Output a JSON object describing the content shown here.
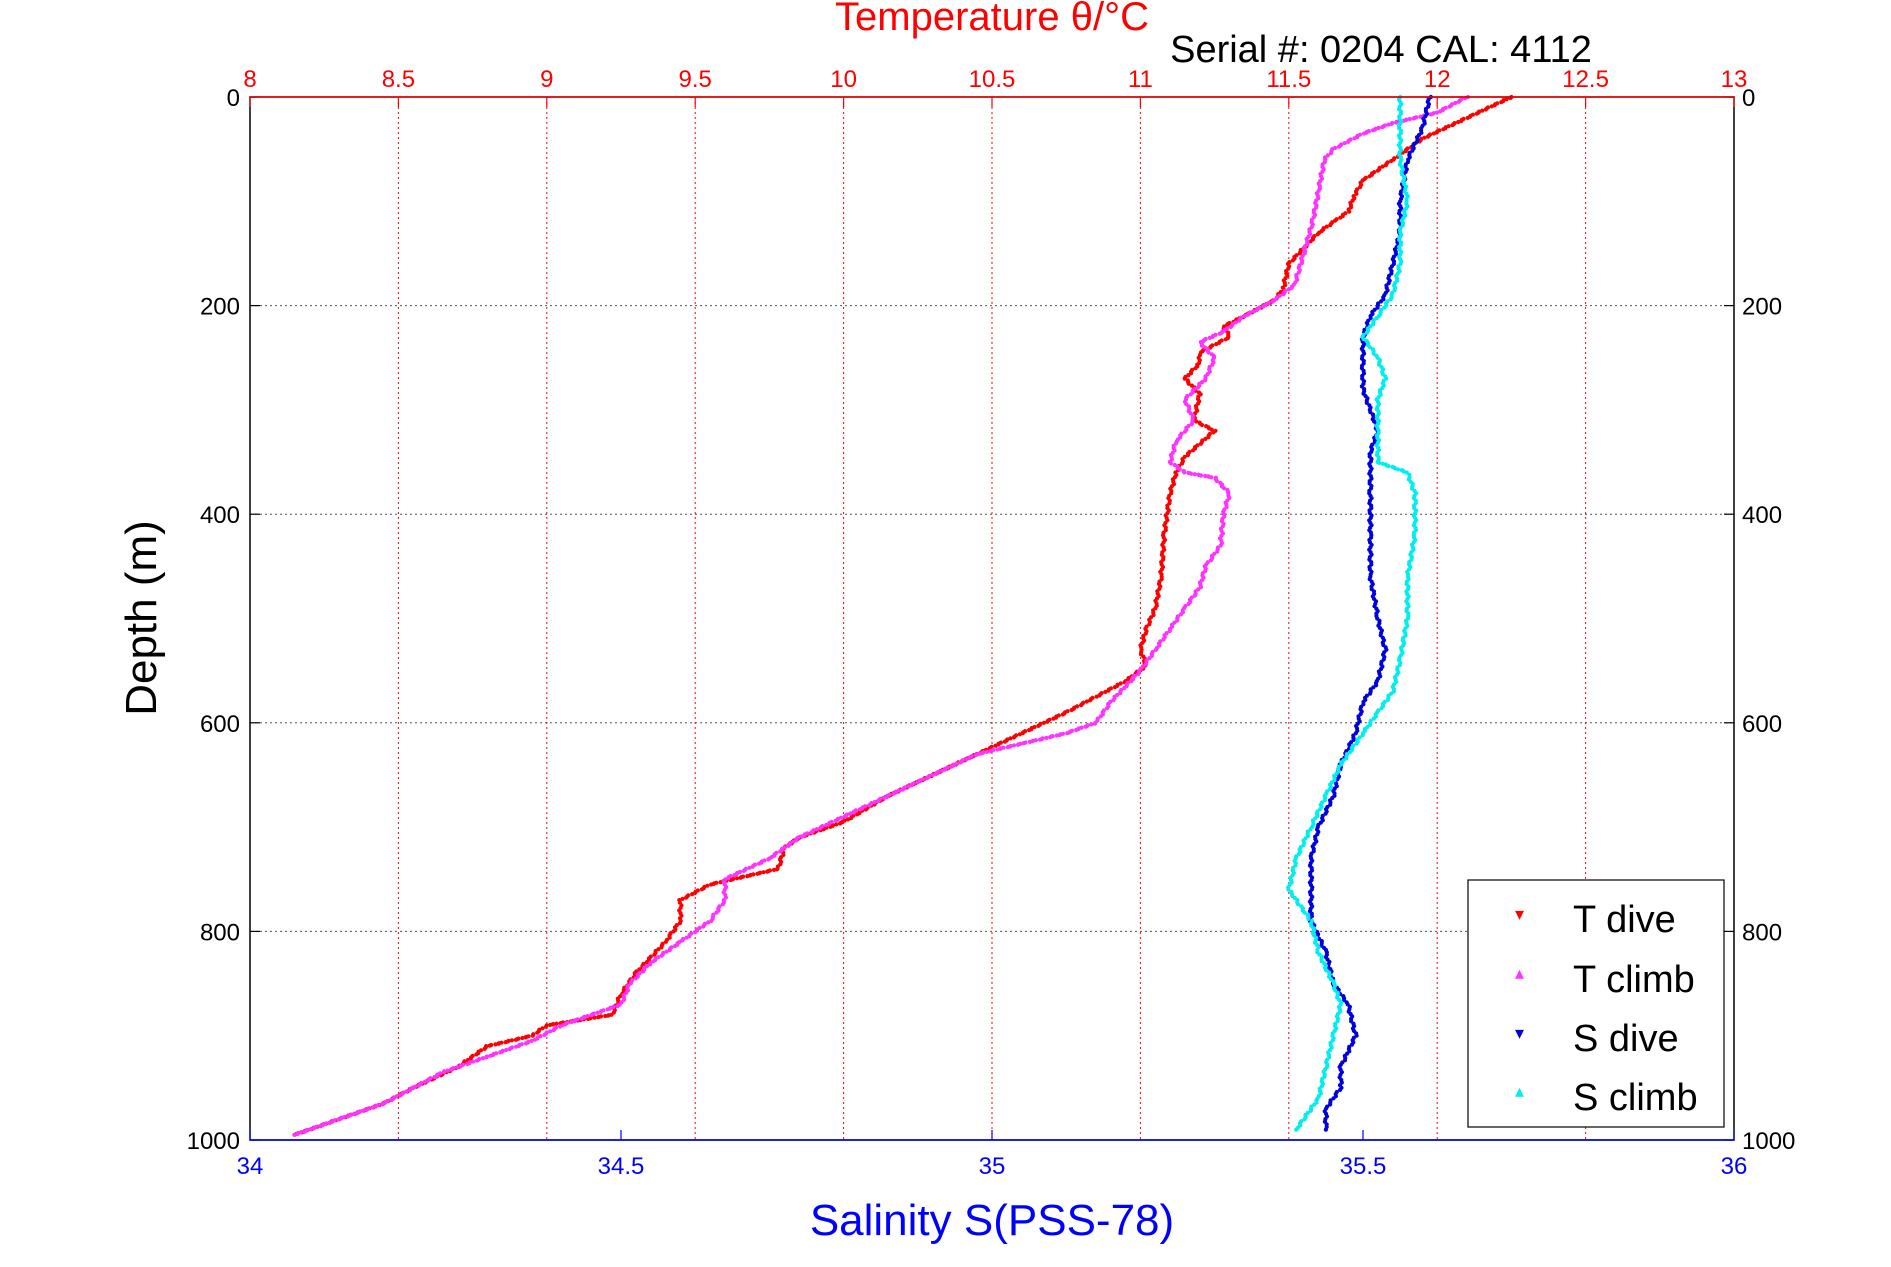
{
  "chart_data": {
    "type": "scatter",
    "title": "Temperature θ/°C",
    "subtitle": "Serial #: 0204  CAL: 4112",
    "ylabel": "Depth (m)",
    "xlabel_bottom": "Salinity S(PSS-78)",
    "xlabel_top": "Temperature θ/°C",
    "y_axis": {
      "min": 0,
      "max": 1000,
      "reversed": true,
      "ticks": [
        0,
        200,
        400,
        600,
        800,
        1000
      ]
    },
    "x_top": {
      "min": 8,
      "max": 13,
      "ticks": [
        8,
        8.5,
        9,
        9.5,
        10,
        10.5,
        11,
        11.5,
        12,
        12.5,
        13
      ]
    },
    "x_bottom": {
      "min": 34,
      "max": 36,
      "ticks": [
        34,
        34.5,
        35,
        35.5,
        36
      ]
    },
    "grid": true,
    "legend_position": "bottom-right",
    "colors": {
      "t_dive": "#ff0000",
      "t_climb": "#ff33ff",
      "s_dive": "#0000dd",
      "s_climb": "#00eeee",
      "top_axis": "#ff0000",
      "bottom_axis": "#0000ff"
    },
    "series": [
      {
        "name": "T dive",
        "axis": "top",
        "color": "#ff0000",
        "marker": "▾",
        "points": [
          [
            12.25,
            0
          ],
          [
            12.1,
            20
          ],
          [
            11.95,
            40
          ],
          [
            11.85,
            60
          ],
          [
            11.75,
            80
          ],
          [
            11.72,
            95
          ],
          [
            11.7,
            110
          ],
          [
            11.65,
            120
          ],
          [
            11.6,
            130
          ],
          [
            11.55,
            145
          ],
          [
            11.5,
            160
          ],
          [
            11.48,
            185
          ],
          [
            11.45,
            195
          ],
          [
            11.35,
            210
          ],
          [
            11.28,
            220
          ],
          [
            11.3,
            230
          ],
          [
            11.2,
            245
          ],
          [
            11.2,
            255
          ],
          [
            11.15,
            270
          ],
          [
            11.2,
            285
          ],
          [
            11.18,
            310
          ],
          [
            11.25,
            320
          ],
          [
            11.15,
            345
          ],
          [
            11.12,
            360
          ],
          [
            11.1,
            380
          ],
          [
            11.08,
            420
          ],
          [
            11.07,
            460
          ],
          [
            11.05,
            490
          ],
          [
            11.02,
            510
          ],
          [
            11.0,
            530
          ],
          [
            11.02,
            545
          ],
          [
            10.95,
            560
          ],
          [
            10.85,
            575
          ],
          [
            10.75,
            590
          ],
          [
            10.6,
            610
          ],
          [
            10.45,
            630
          ],
          [
            10.3,
            650
          ],
          [
            10.15,
            670
          ],
          [
            10.0,
            695
          ],
          [
            9.85,
            710
          ],
          [
            9.8,
            720
          ],
          [
            9.78,
            740
          ],
          [
            9.55,
            755
          ],
          [
            9.45,
            770
          ],
          [
            9.45,
            790
          ],
          [
            9.4,
            810
          ],
          [
            9.3,
            840
          ],
          [
            9.25,
            860
          ],
          [
            9.22,
            880
          ],
          [
            9.0,
            890
          ],
          [
            8.95,
            900
          ],
          [
            8.8,
            910
          ],
          [
            8.7,
            930
          ],
          [
            8.55,
            950
          ],
          [
            8.45,
            965
          ],
          [
            8.35,
            975
          ],
          [
            8.25,
            985
          ],
          [
            8.15,
            995
          ]
        ]
      },
      {
        "name": "T climb",
        "axis": "top",
        "color": "#ff33ff",
        "marker": "▴",
        "points": [
          [
            12.1,
            0
          ],
          [
            12.0,
            15
          ],
          [
            11.85,
            25
          ],
          [
            11.75,
            35
          ],
          [
            11.65,
            50
          ],
          [
            11.62,
            60
          ],
          [
            11.6,
            90
          ],
          [
            11.58,
            120
          ],
          [
            11.55,
            150
          ],
          [
            11.52,
            180
          ],
          [
            11.45,
            195
          ],
          [
            11.35,
            210
          ],
          [
            11.28,
            225
          ],
          [
            11.2,
            235
          ],
          [
            11.25,
            250
          ],
          [
            11.22,
            270
          ],
          [
            11.15,
            290
          ],
          [
            11.18,
            310
          ],
          [
            11.12,
            330
          ],
          [
            11.1,
            350
          ],
          [
            11.15,
            360
          ],
          [
            11.25,
            365
          ],
          [
            11.3,
            380
          ],
          [
            11.28,
            400
          ],
          [
            11.27,
            430
          ],
          [
            11.22,
            450
          ],
          [
            11.2,
            470
          ],
          [
            11.15,
            490
          ],
          [
            11.1,
            510
          ],
          [
            11.05,
            530
          ],
          [
            11.0,
            550
          ],
          [
            10.95,
            565
          ],
          [
            10.9,
            580
          ],
          [
            10.85,
            600
          ],
          [
            10.75,
            610
          ],
          [
            10.6,
            620
          ],
          [
            10.45,
            630
          ],
          [
            10.3,
            650
          ],
          [
            10.15,
            670
          ],
          [
            10.0,
            690
          ],
          [
            9.85,
            710
          ],
          [
            9.75,
            730
          ],
          [
            9.6,
            750
          ],
          [
            9.6,
            770
          ],
          [
            9.55,
            790
          ],
          [
            9.45,
            810
          ],
          [
            9.35,
            830
          ],
          [
            9.28,
            850
          ],
          [
            9.25,
            870
          ],
          [
            9.05,
            890
          ],
          [
            8.95,
            905
          ],
          [
            8.8,
            920
          ],
          [
            8.65,
            935
          ],
          [
            8.55,
            950
          ],
          [
            8.45,
            965
          ],
          [
            8.35,
            975
          ],
          [
            8.25,
            985
          ],
          [
            8.15,
            995
          ]
        ]
      },
      {
        "name": "S dive",
        "axis": "bottom",
        "color": "#0000dd",
        "marker": "▾",
        "points": [
          [
            35.59,
            0
          ],
          [
            35.58,
            30
          ],
          [
            35.56,
            60
          ],
          [
            35.55,
            100
          ],
          [
            35.55,
            130
          ],
          [
            35.54,
            160
          ],
          [
            35.53,
            190
          ],
          [
            35.51,
            210
          ],
          [
            35.5,
            230
          ],
          [
            35.5,
            260
          ],
          [
            35.5,
            280
          ],
          [
            35.51,
            300
          ],
          [
            35.52,
            320
          ],
          [
            35.51,
            340
          ],
          [
            35.51,
            380
          ],
          [
            35.51,
            420
          ],
          [
            35.51,
            460
          ],
          [
            35.52,
            500
          ],
          [
            35.53,
            530
          ],
          [
            35.52,
            560
          ],
          [
            35.5,
            580
          ],
          [
            35.49,
            610
          ],
          [
            35.47,
            640
          ],
          [
            35.46,
            670
          ],
          [
            35.44,
            700
          ],
          [
            35.43,
            730
          ],
          [
            35.43,
            760
          ],
          [
            35.43,
            790
          ],
          [
            35.45,
            820
          ],
          [
            35.46,
            850
          ],
          [
            35.48,
            870
          ],
          [
            35.49,
            900
          ],
          [
            35.47,
            930
          ],
          [
            35.47,
            950
          ],
          [
            35.45,
            970
          ],
          [
            35.45,
            990
          ]
        ]
      },
      {
        "name": "S climb",
        "axis": "bottom",
        "color": "#00eeee",
        "marker": "▴",
        "points": [
          [
            35.55,
            0
          ],
          [
            35.55,
            30
          ],
          [
            35.55,
            60
          ],
          [
            35.56,
            100
          ],
          [
            35.55,
            130
          ],
          [
            35.55,
            160
          ],
          [
            35.54,
            190
          ],
          [
            35.52,
            210
          ],
          [
            35.5,
            230
          ],
          [
            35.52,
            250
          ],
          [
            35.53,
            270
          ],
          [
            35.52,
            290
          ],
          [
            35.52,
            320
          ],
          [
            35.52,
            350
          ],
          [
            35.56,
            360
          ],
          [
            35.57,
            380
          ],
          [
            35.57,
            420
          ],
          [
            35.56,
            460
          ],
          [
            35.56,
            500
          ],
          [
            35.55,
            540
          ],
          [
            35.54,
            570
          ],
          [
            35.52,
            590
          ],
          [
            35.5,
            610
          ],
          [
            35.47,
            640
          ],
          [
            35.45,
            670
          ],
          [
            35.43,
            700
          ],
          [
            35.41,
            730
          ],
          [
            35.4,
            760
          ],
          [
            35.43,
            790
          ],
          [
            35.44,
            820
          ],
          [
            35.46,
            850
          ],
          [
            35.47,
            870
          ],
          [
            35.46,
            900
          ],
          [
            35.45,
            930
          ],
          [
            35.44,
            960
          ],
          [
            35.41,
            990
          ]
        ]
      }
    ]
  }
}
